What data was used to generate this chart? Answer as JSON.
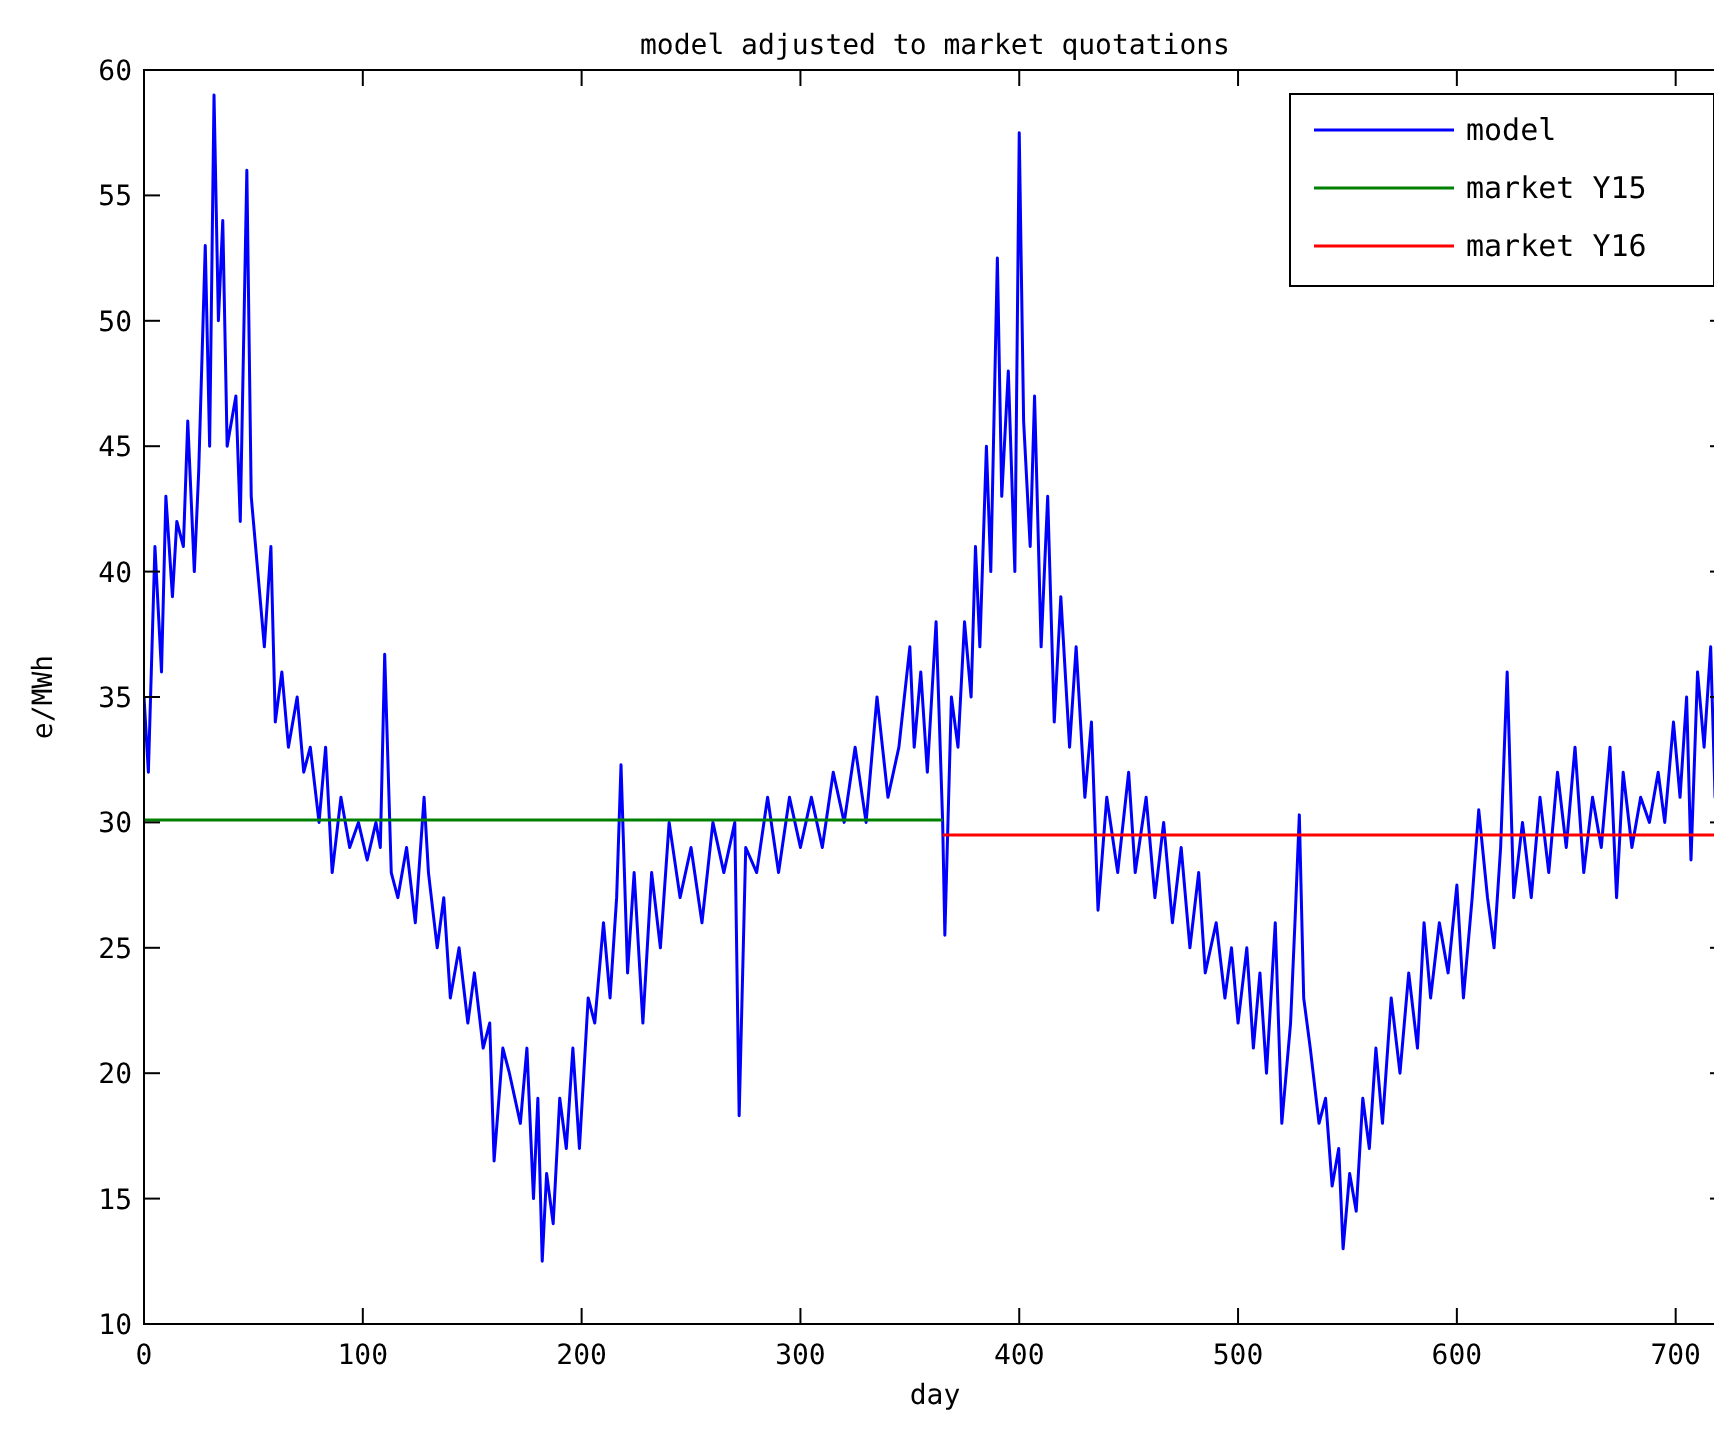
{
  "chart_data": {
    "type": "line",
    "title": "model adjusted to market quotations",
    "xlabel": "day",
    "ylabel": "e/MWh",
    "xlim": [
      0,
      723
    ],
    "ylim": [
      10,
      60
    ],
    "xticks": [
      0,
      100,
      200,
      300,
      400,
      500,
      600,
      700
    ],
    "yticks": [
      10,
      15,
      20,
      25,
      30,
      35,
      40,
      45,
      50,
      55,
      60
    ],
    "grid": false,
    "legend": "top right",
    "line_style": "solid",
    "marker": "none",
    "series": [
      {
        "name": "model",
        "color": "#0000ff",
        "x": [
          0,
          2,
          5,
          8,
          10,
          13,
          15,
          18,
          20,
          23,
          25,
          28,
          30,
          32,
          34,
          36,
          38,
          42,
          44,
          47,
          49,
          52,
          55,
          58,
          60,
          63,
          66,
          70,
          73,
          76,
          80,
          83,
          86,
          90,
          94,
          98,
          102,
          106,
          108,
          110,
          113,
          116,
          120,
          124,
          128,
          130,
          134,
          137,
          140,
          144,
          148,
          151,
          155,
          158,
          160,
          164,
          167,
          172,
          175,
          178,
          180,
          182,
          184,
          187,
          190,
          193,
          196,
          199,
          203,
          206,
          210,
          213,
          216,
          218,
          221,
          224,
          228,
          232,
          236,
          240,
          245,
          250,
          255,
          260,
          265,
          270,
          272,
          275,
          280,
          285,
          290,
          295,
          300,
          305,
          310,
          315,
          320,
          325,
          330,
          335,
          340,
          345,
          350,
          352,
          355,
          358,
          362,
          365,
          366,
          369,
          372,
          375,
          378,
          380,
          382,
          385,
          387,
          390,
          392,
          395,
          398,
          400,
          402,
          405,
          407,
          410,
          413,
          416,
          419,
          423,
          426,
          430,
          433,
          436,
          440,
          445,
          450,
          453,
          458,
          462,
          466,
          470,
          474,
          478,
          482,
          485,
          490,
          494,
          497,
          500,
          504,
          507,
          510,
          513,
          517,
          520,
          524,
          526,
          528,
          530,
          533,
          537,
          540,
          543,
          546,
          548,
          551,
          554,
          557,
          560,
          563,
          566,
          570,
          574,
          578,
          582,
          585,
          588,
          592,
          596,
          600,
          603,
          607,
          610,
          614,
          617,
          620,
          623,
          626,
          630,
          634,
          638,
          642,
          646,
          650,
          654,
          658,
          662,
          666,
          670,
          673,
          676,
          680,
          684,
          688,
          692,
          695,
          699,
          702,
          705,
          707,
          710,
          713,
          716,
          718,
          720
        ],
        "values": [
          35,
          32,
          41,
          36,
          43,
          39,
          42,
          41,
          46,
          40,
          44,
          53,
          45,
          59,
          50,
          54,
          45,
          47,
          42,
          56,
          43,
          40,
          37,
          41,
          34,
          36,
          33,
          35,
          32,
          33,
          30,
          33,
          28,
          31,
          29,
          30,
          28.5,
          30,
          29,
          36.7,
          28,
          27,
          29,
          26,
          31,
          28,
          25,
          27,
          23,
          25,
          22,
          24,
          21,
          22,
          16.5,
          21,
          20,
          18,
          21,
          15,
          19,
          12.5,
          16,
          14,
          19,
          17,
          21,
          17,
          23,
          22,
          26,
          23,
          27,
          32.3,
          24,
          28,
          22,
          28,
          25,
          30,
          27,
          29,
          26,
          30,
          28,
          30,
          18.3,
          29,
          28,
          31,
          28,
          31,
          29,
          31,
          29,
          32,
          30,
          33,
          30,
          35,
          31,
          33,
          37,
          33,
          36,
          32,
          38,
          30,
          25.5,
          35,
          33,
          38,
          35,
          41,
          37,
          45,
          40,
          52.5,
          43,
          48,
          40,
          57.5,
          46,
          41,
          47,
          37,
          43,
          34,
          39,
          33,
          37,
          31,
          34,
          26.5,
          31,
          28,
          32,
          28,
          31,
          27,
          30,
          26,
          29,
          25,
          28,
          24,
          26,
          23,
          25,
          22,
          25,
          21,
          24,
          20,
          26,
          18,
          22,
          26,
          30.3,
          23,
          21,
          18,
          19,
          15.5,
          17,
          13,
          16,
          14.5,
          19,
          17,
          21,
          18,
          23,
          20,
          24,
          21,
          26,
          23,
          26,
          24,
          27.5,
          23,
          27,
          30.5,
          27,
          25,
          29,
          36,
          27,
          30,
          27,
          31,
          28,
          32,
          29,
          33,
          28,
          31,
          29,
          33,
          27,
          32,
          29,
          31,
          30,
          32,
          30,
          34,
          31,
          35,
          28.5,
          36,
          33,
          37,
          31,
          36
        ]
      },
      {
        "name": "market Y15",
        "color": "#008000",
        "x": [
          0,
          365
        ],
        "values": [
          30.1,
          30.1
        ]
      },
      {
        "name": "market Y16",
        "color": "#ff0000",
        "x": [
          365,
          718
        ],
        "values": [
          29.5,
          29.5
        ]
      }
    ]
  }
}
